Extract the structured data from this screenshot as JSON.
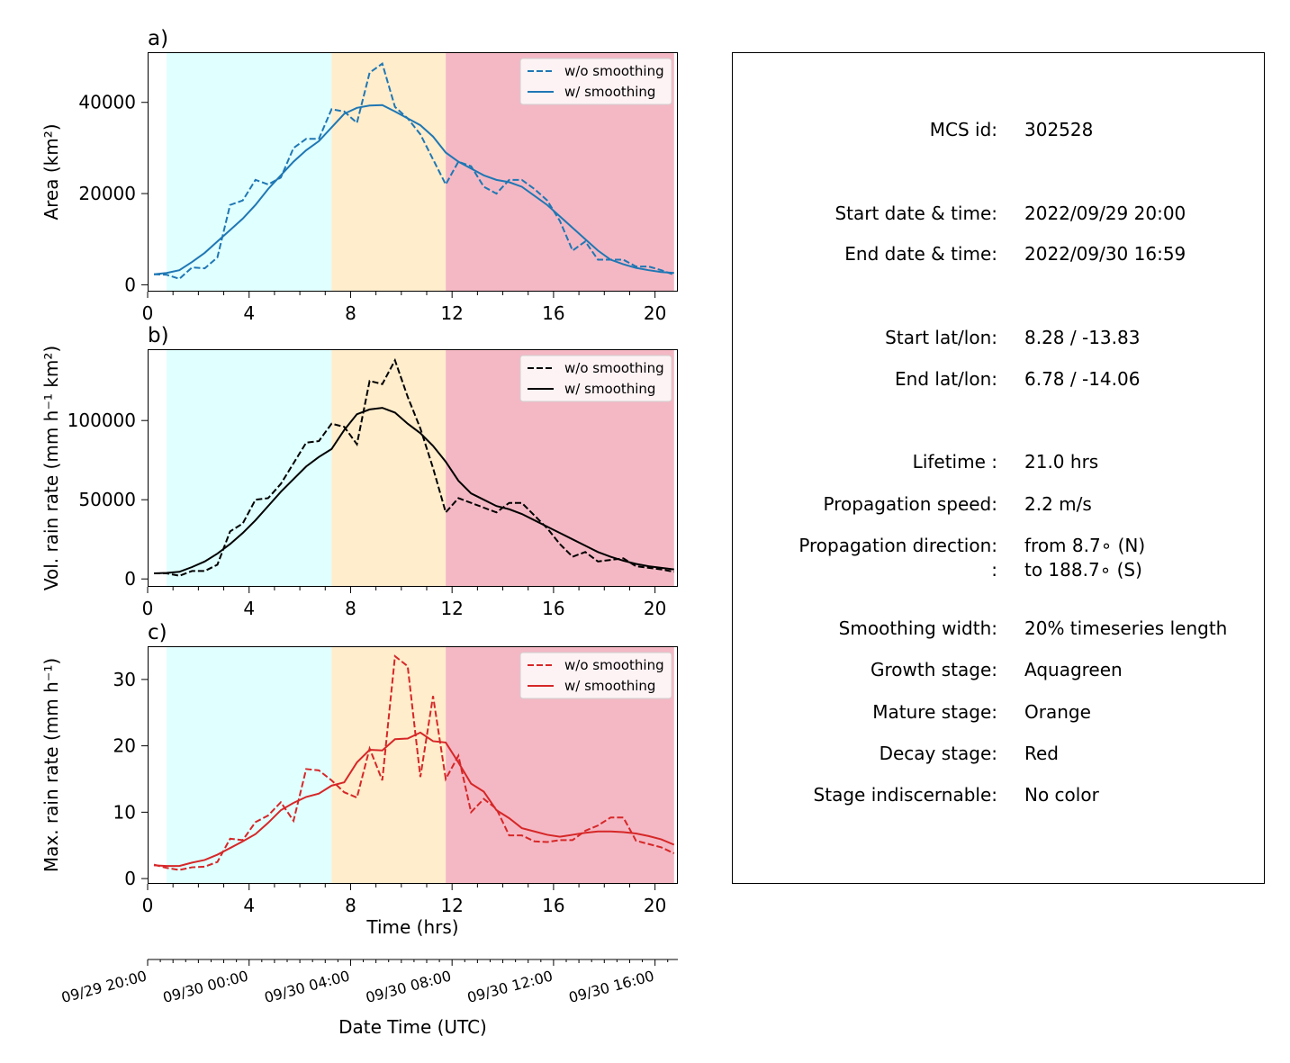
{
  "chart_data": [
    {
      "panel_label": "a)",
      "type": "line",
      "ylabel": "Area  (km²)",
      "xlim": [
        0,
        20.9
      ],
      "ylim": [
        -1500,
        51000
      ],
      "xticks": [
        0,
        4,
        8,
        12,
        16,
        20
      ],
      "yticks": [
        0,
        20000,
        40000
      ],
      "color": "#1f77b4",
      "stage_bands": [
        {
          "stage": "Aquagreen",
          "from": 0.75,
          "to": 7.25,
          "color": "#e0ffff"
        },
        {
          "stage": "Orange",
          "from": 7.25,
          "to": 11.75,
          "color": "#ffedcc"
        },
        {
          "stage": "Red",
          "from": 11.75,
          "to": 20.75,
          "color": "#f4b8c4"
        }
      ],
      "legend": {
        "position": "top-right",
        "entries": [
          "w/o smoothing",
          "w/ smoothing"
        ]
      },
      "x": [
        0.25,
        0.75,
        1.25,
        1.75,
        2.25,
        2.75,
        3.25,
        3.75,
        4.25,
        4.75,
        5.25,
        5.75,
        6.25,
        6.75,
        7.25,
        7.75,
        8.25,
        8.75,
        9.25,
        9.75,
        10.25,
        10.75,
        11.25,
        11.75,
        12.25,
        12.75,
        13.25,
        13.75,
        14.25,
        14.75,
        15.25,
        15.75,
        16.25,
        16.75,
        17.25,
        17.75,
        18.25,
        18.75,
        19.25,
        19.75,
        20.25,
        20.75
      ],
      "series": [
        {
          "name": "w/o smoothing",
          "style": "dashed",
          "values": [
            2300,
            2200,
            1300,
            3800,
            3600,
            6000,
            17500,
            18500,
            23000,
            22000,
            23500,
            30000,
            32000,
            32000,
            38500,
            38000,
            35500,
            46500,
            48500,
            39000,
            36500,
            33000,
            27500,
            22000,
            27000,
            26000,
            21500,
            20000,
            23000,
            23000,
            21000,
            18500,
            14000,
            7500,
            9500,
            5500,
            5500,
            5500,
            4000,
            4000,
            3200,
            2200
          ]
        },
        {
          "name": "w/ smoothing",
          "style": "solid",
          "values": [
            2300,
            2600,
            3200,
            5000,
            7000,
            9500,
            12000,
            14500,
            17500,
            21000,
            24000,
            27000,
            29500,
            31500,
            34500,
            37500,
            38800,
            39300,
            39400,
            38000,
            36500,
            35000,
            32500,
            29000,
            27000,
            25500,
            24000,
            23000,
            22500,
            21500,
            19500,
            17500,
            15000,
            12500,
            10000,
            7500,
            5500,
            4500,
            3700,
            3200,
            2800,
            2600
          ]
        }
      ]
    },
    {
      "panel_label": "b)",
      "type": "line",
      "ylabel": "Vol. rain rate (mm h⁻¹ km²)",
      "xlim": [
        0,
        20.9
      ],
      "ylim": [
        -5000,
        145000
      ],
      "xticks": [
        0,
        4,
        8,
        12,
        16,
        20
      ],
      "yticks": [
        0,
        50000,
        100000
      ],
      "color": "#000000",
      "stage_bands": [
        {
          "stage": "Aquagreen",
          "from": 0.75,
          "to": 7.25,
          "color": "#e0ffff"
        },
        {
          "stage": "Orange",
          "from": 7.25,
          "to": 11.75,
          "color": "#ffedcc"
        },
        {
          "stage": "Red",
          "from": 11.75,
          "to": 20.75,
          "color": "#f4b8c4"
        }
      ],
      "legend": {
        "position": "top-right",
        "entries": [
          "w/o smoothing",
          "w/ smoothing"
        ]
      },
      "x": [
        0.25,
        0.75,
        1.25,
        1.75,
        2.25,
        2.75,
        3.25,
        3.75,
        4.25,
        4.75,
        5.25,
        5.75,
        6.25,
        6.75,
        7.25,
        7.75,
        8.25,
        8.75,
        9.25,
        9.75,
        10.25,
        10.75,
        11.25,
        11.75,
        12.25,
        12.75,
        13.25,
        13.75,
        14.25,
        14.75,
        15.25,
        15.75,
        16.25,
        16.75,
        17.25,
        17.75,
        18.25,
        18.75,
        19.25,
        19.75,
        20.25,
        20.75
      ],
      "series": [
        {
          "name": "w/o smoothing",
          "style": "dashed",
          "values": [
            3500,
            3500,
            2000,
            5000,
            5000,
            9000,
            30000,
            35000,
            50000,
            51000,
            60000,
            73000,
            86000,
            87000,
            98000,
            96000,
            85000,
            125000,
            123000,
            138000,
            115000,
            95000,
            70000,
            42000,
            51000,
            48000,
            45000,
            42000,
            48000,
            48000,
            40000,
            32000,
            22000,
            14000,
            17000,
            11000,
            12000,
            13000,
            8000,
            7000,
            6000,
            4500
          ]
        },
        {
          "name": "w/ smoothing",
          "style": "solid",
          "values": [
            3500,
            3800,
            4500,
            7500,
            11000,
            16000,
            22000,
            29000,
            37000,
            46000,
            55000,
            63000,
            71000,
            77000,
            82000,
            94000,
            104000,
            107000,
            108000,
            105000,
            98000,
            92000,
            84000,
            74000,
            62000,
            54000,
            50000,
            46000,
            44000,
            41000,
            37000,
            33000,
            29000,
            25000,
            21000,
            17000,
            14000,
            11500,
            9500,
            8000,
            7000,
            6000
          ]
        }
      ]
    },
    {
      "panel_label": "c)",
      "type": "line",
      "ylabel": "Max. rain rate  (mm h⁻¹)",
      "xlabel": "Time (hrs)",
      "xlim": [
        0,
        20.9
      ],
      "ylim": [
        -0.8,
        35
      ],
      "xticks": [
        0,
        4,
        8,
        12,
        16,
        20
      ],
      "yticks": [
        0,
        10,
        20,
        30
      ],
      "color": "#d62728",
      "stage_bands": [
        {
          "stage": "Aquagreen",
          "from": 0.75,
          "to": 7.25,
          "color": "#e0ffff"
        },
        {
          "stage": "Orange",
          "from": 7.25,
          "to": 11.75,
          "color": "#ffedcc"
        },
        {
          "stage": "Red",
          "from": 11.75,
          "to": 20.75,
          "color": "#f4b8c4"
        }
      ],
      "legend": {
        "position": "top-right",
        "entries": [
          "w/o smoothing",
          "w/ smoothing"
        ]
      },
      "x": [
        0.25,
        0.75,
        1.25,
        1.75,
        2.25,
        2.75,
        3.25,
        3.75,
        4.25,
        4.75,
        5.25,
        5.75,
        6.25,
        6.75,
        7.25,
        7.75,
        8.25,
        8.75,
        9.25,
        9.75,
        10.25,
        10.75,
        11.25,
        11.75,
        12.25,
        12.75,
        13.25,
        13.75,
        14.25,
        14.75,
        15.25,
        15.75,
        16.25,
        16.75,
        17.25,
        17.75,
        18.25,
        18.75,
        19.25,
        19.75,
        20.25,
        20.75
      ],
      "series": [
        {
          "name": "w/o smoothing",
          "style": "dashed",
          "values": [
            2.1,
            1.6,
            1.3,
            1.7,
            1.8,
            2.5,
            6.0,
            5.8,
            8.5,
            9.5,
            11.5,
            8.7,
            16.5,
            16.3,
            14.8,
            13.0,
            12.2,
            19.6,
            14.8,
            33.5,
            32.0,
            15.3,
            27.5,
            15.0,
            18.5,
            10.0,
            12.0,
            10.5,
            6.5,
            6.5,
            5.6,
            5.5,
            5.8,
            5.8,
            7.2,
            8.0,
            9.2,
            9.2,
            5.7,
            5.2,
            4.7,
            3.8
          ]
        },
        {
          "name": "w/ smoothing",
          "style": "solid",
          "values": [
            2.0,
            1.9,
            1.9,
            2.4,
            2.8,
            3.6,
            4.6,
            5.6,
            6.7,
            8.4,
            10.3,
            11.4,
            12.3,
            12.8,
            14.0,
            14.5,
            17.5,
            19.4,
            19.3,
            21.0,
            21.1,
            22.0,
            20.7,
            20.5,
            17.5,
            14.3,
            13.1,
            10.3,
            9.1,
            7.6,
            7.1,
            6.6,
            6.3,
            6.6,
            6.9,
            7.1,
            7.1,
            7.0,
            6.8,
            6.4,
            5.9,
            5.1
          ]
        }
      ]
    }
  ],
  "date_axis": {
    "xlabel": "Date Time (UTC)",
    "tick_labels": [
      "09/29 20:00",
      "09/30 00:00",
      "09/30 04:00",
      "09/30 08:00",
      "09/30 12:00",
      "09/30 16:00"
    ]
  },
  "info": {
    "rows": [
      {
        "label": "MCS id:",
        "value": "302528"
      },
      {
        "label": "Start date & time:",
        "value": "2022/09/29 20:00"
      },
      {
        "label": "End date & time:",
        "value": "2022/09/30 16:59"
      },
      {
        "label": "Start lat/lon:",
        "value": "8.28 / -13.83"
      },
      {
        "label": "End lat/lon:",
        "value": "6.78 / -14.06"
      },
      {
        "label": "Lifetime :",
        "value": "21.0 hrs"
      },
      {
        "label": "Propagation speed:",
        "value": "2.2 m/s"
      },
      {
        "label": "Propagation direction:",
        "value": "from   8.7∘ (N)"
      },
      {
        "label": ":",
        "value": "to   188.7∘ (S)"
      },
      {
        "label": "Smoothing width:",
        "value": "20% timeseries length"
      },
      {
        "label": "Growth stage:",
        "value": "Aquagreen"
      },
      {
        "label": "Mature stage:",
        "value": "Orange"
      },
      {
        "label": "Decay stage:",
        "value": "Red"
      },
      {
        "label": "Stage indiscernable:",
        "value": "No color"
      }
    ]
  }
}
